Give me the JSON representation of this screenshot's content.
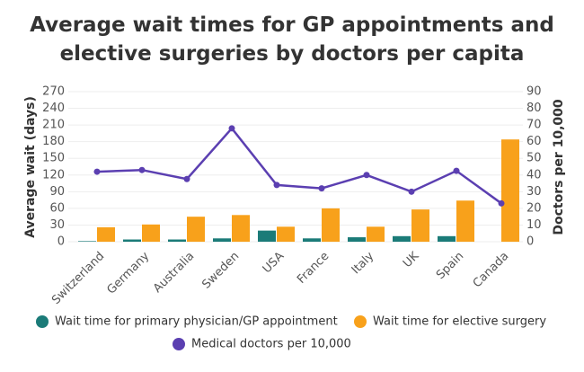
{
  "chart_data": {
    "type": "bar-line",
    "title": "Average wait times for GP appointments and elective surgeries by doctors per capita",
    "categories": [
      "Switzerland",
      "Germany",
      "Australia",
      "Sweden",
      "USA",
      "France",
      "Italy",
      "UK",
      "Spain",
      "Canada"
    ],
    "series": [
      {
        "name": "Wait time for primary physician/GP appointment",
        "color": "#1b7b78",
        "type": "bar",
        "values": [
          1,
          4,
          4,
          6,
          20,
          6,
          8,
          10,
          10,
          null
        ]
      },
      {
        "name": "Wait time for elective surgery",
        "color": "#f8a11b",
        "type": "bar",
        "values": [
          26,
          31,
          45,
          48,
          27,
          60,
          27,
          58,
          74,
          184
        ]
      },
      {
        "name": "Medical doctors per 10,000",
        "color": "#5b3fb1",
        "type": "line",
        "axis": "y2",
        "values": [
          42,
          43,
          37.6,
          68,
          34,
          32,
          40,
          30,
          42.5,
          23
        ]
      }
    ],
    "ylabel": "Average wait (days)",
    "y2label": "Doctors per 10,000",
    "ylim": [
      0,
      270
    ],
    "yticks": [
      0,
      30,
      60,
      90,
      120,
      150,
      180,
      210,
      240,
      270
    ],
    "y2lim": [
      0,
      90
    ],
    "y2ticks": [
      0,
      10,
      20,
      30,
      40,
      50,
      60,
      70,
      80,
      90
    ],
    "grid": true
  }
}
